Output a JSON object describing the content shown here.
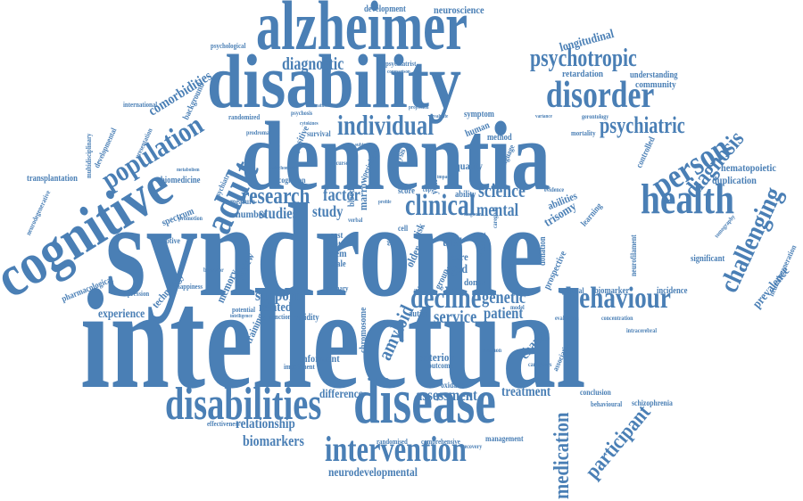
{
  "cloud": {
    "color": "#4a7fb5",
    "words": {
      "syndrome": "syndrome",
      "intellectual": "intellectual",
      "dementia": "dementia",
      "disability": "disability",
      "alzheimer": "alzheimer",
      "cognitive": "cognitive",
      "disease": "disease",
      "disabilities": "disabilities",
      "health": "health",
      "behaviour": "behaviour",
      "disorder": "disorder",
      "intervention": "intervention",
      "population": "population",
      "adult": "adult",
      "person": "person",
      "clinical": "clinical",
      "individual": "individual",
      "research": "research",
      "decline": "decline",
      "psychotropic": "psychotropic",
      "psychiatric": "psychiatric",
      "diagnosis": "diagnosis",
      "challenging": "challenging",
      "medication": "medication",
      "participant": "participant",
      "diagnostic": "diagnostic",
      "mental": "mental",
      "support": "support",
      "science": "science",
      "amyloid": "amyloid",
      "genetic": "genetic",
      "service": "service",
      "patient": "patient",
      "studies": "studies",
      "study": "study",
      "factor": "factor",
      "assessment": "assessment",
      "treatment": "treatment",
      "biomarkers": "biomarkers",
      "relationship": "relationship",
      "neurodevelopmental": "neurodevelopmental",
      "difference": "difference",
      "experience": "experience",
      "comorbidities": "comorbidities",
      "development": "development",
      "neuroscience": "neuroscience",
      "longitudinal": "longitudinal",
      "retardation": "retardation",
      "understanding": "understanding",
      "community": "community",
      "hematopoietic": "hematopoietic",
      "duplication": "duplication",
      "prevalence": "prevalence",
      "significant": "significant",
      "transplantation": "transplantation",
      "biomedicine": "biomedicine",
      "spectrum": "spectrum",
      "receptive": "receptive",
      "pharmacological": "pharmacological",
      "depression": "depression",
      "happiness": "happiness",
      "technology": "technology",
      "memory": "memory",
      "review": "review",
      "training": "training",
      "related": "related",
      "number": "number",
      "informant": "informant",
      "impairment": "impairment",
      "validity": "validity",
      "criterion": "criterion",
      "outcome": "outcome",
      "oxidative": "oxidative",
      "conclusion": "conclusion",
      "schizophrenia": "schizophrenia",
      "behavioural": "behavioural",
      "effectiveness": "effectiveness",
      "randomised": "randomised",
      "comprehensive": "comprehensive",
      "management": "management",
      "incidence": "incidence",
      "biomarker": "biomarker",
      "general": "general",
      "evaluation": "evaluation",
      "concentration": "concentration",
      "intracerebral": "intracerebral",
      "trisomy": "trisomy",
      "abilities": "abilities",
      "learning": "learning",
      "quality": "quality",
      "prospective": "prospective",
      "donation": "donation",
      "chromosome": "chromosome",
      "autism": "autism",
      "marrow": "marrow",
      "stem": "stem",
      "scale": "scale",
      "cost": "cost",
      "data": "data",
      "blood": "blood",
      "score": "score",
      "cell": "cell",
      "trial": "trial",
      "aged": "aged",
      "care": "care",
      "group": "group",
      "donor": "donor",
      "result": "result",
      "change": "change",
      "association": "association",
      "older": "older",
      "risk": "risk",
      "year": "year",
      "ability": "ability",
      "psychiatry": "psychiatry",
      "cognition": "cognition",
      "measure": "measure",
      "positive": "positive",
      "human": "human",
      "method": "method",
      "symptom": "symptom",
      "survival": "survival",
      "mortality": "mortality",
      "gerontology": "gerontology",
      "controlled": "controlled",
      "tomography": "tomography",
      "neurofilament": "neurofilament",
      "neurodegeneration": "neurodegeneration",
      "international": "international",
      "developmental": "developmental",
      "multidisciplinary": "multidisciplinary",
      "neurodegenerative": "neurodegenerative",
      "background": "background",
      "presentation": "presentation",
      "randomized": "randomized",
      "psychiatrist": "psychiatrist",
      "psychological": "psychological",
      "caregivers": "caregivers",
      "analysis": "analysis",
      "peripheral": "peripheral",
      "language": "language",
      "evidence": "evidence",
      "promotion": "promotion",
      "potential": "potential",
      "function": "function",
      "primary": "primary",
      "illness": "illness",
      "recovery": "recovery",
      "common": "common",
      "prodromal": "prodromal",
      "caregiver": "caregiver",
      "higher": "higher",
      "metabolism": "metabolism",
      "diagnoses": "diagnoses",
      "intelligence": "intelligence",
      "precursor": "precursor",
      "mitochondrial": "mitochondrial",
      "effect": "effect",
      "model": "model",
      "behavior": "behavior",
      "cytokines": "cytokines",
      "psychosis": "psychosis",
      "treatments": "treatments",
      "comparison": "comparison",
      "projection": "projection",
      "evaluate": "evaluate",
      "variance": "variance",
      "subtype": "subtype",
      "profile": "profile",
      "verbal": "verbal",
      "copy": "copy",
      "impact": "impact",
      "dose": "dose"
    }
  }
}
